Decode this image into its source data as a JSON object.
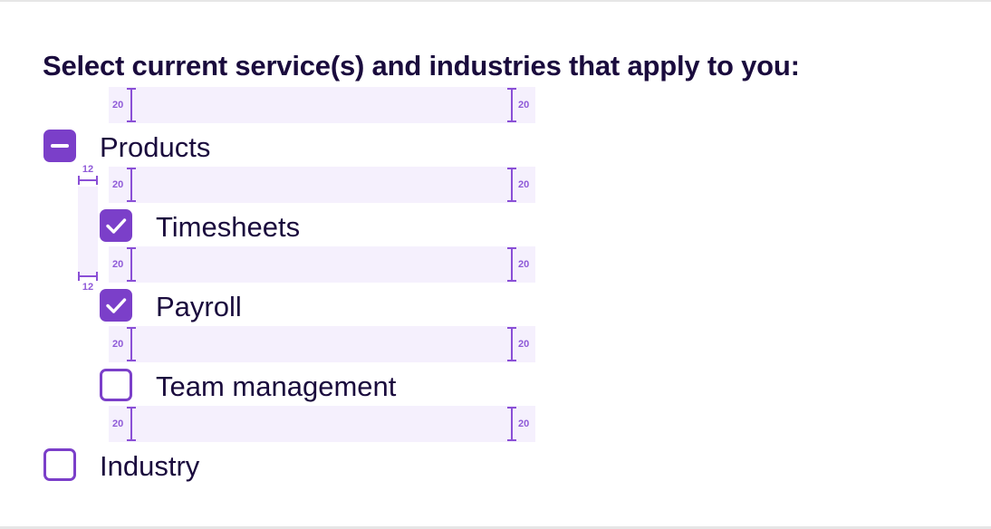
{
  "form": {
    "title": "Select current service(s) and industries that apply to you:"
  },
  "spacing": {
    "gap_label": "20",
    "indent_label": "12"
  },
  "options": [
    {
      "label": "Products",
      "state": "indeterminate"
    },
    {
      "label": "Timesheets",
      "state": "checked"
    },
    {
      "label": "Payroll",
      "state": "checked"
    },
    {
      "label": "Team management",
      "state": "unchecked"
    },
    {
      "label": "Industry",
      "state": "unchecked"
    }
  ],
  "colors": {
    "accent": "#7b3fc9",
    "spacer": "#f5f0fd",
    "text": "#1a0b3d",
    "annotation": "#8a4fd6"
  }
}
